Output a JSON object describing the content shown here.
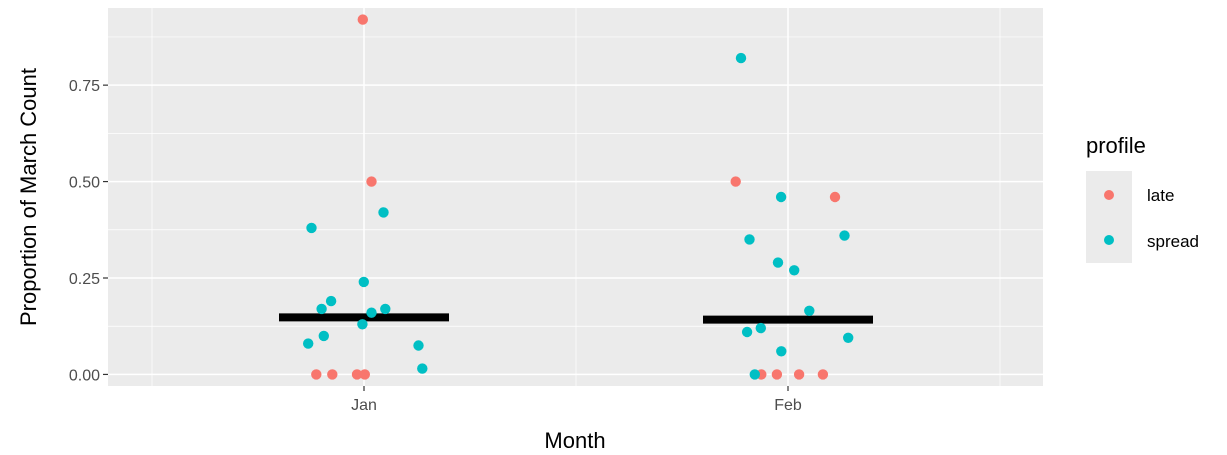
{
  "chart_data": {
    "type": "scatter",
    "xlabel": "Month",
    "ylabel": "Proportion of March Count",
    "categories": [
      "Jan",
      "Feb"
    ],
    "y_ticks": [
      "0.00",
      "0.25",
      "0.50",
      "0.75"
    ],
    "ylim": [
      -0.03,
      0.95
    ],
    "grid": true,
    "legend": {
      "title": "profile",
      "position": "right",
      "entries": [
        {
          "name": "late",
          "color": "#F8766D"
        },
        {
          "name": "spread",
          "color": "#00BFC4"
        }
      ]
    },
    "series": [
      {
        "name": "late",
        "color": "#F8766D",
        "points": [
          {
            "x": "Jan",
            "y": 0.92
          },
          {
            "x": "Jan",
            "y": 0.5
          },
          {
            "x": "Jan",
            "y": 0.0
          },
          {
            "x": "Jan",
            "y": 0.0
          },
          {
            "x": "Jan",
            "y": 0.0
          },
          {
            "x": "Jan",
            "y": 0.0
          },
          {
            "x": "Feb",
            "y": 0.5
          },
          {
            "x": "Feb",
            "y": 0.46
          },
          {
            "x": "Feb",
            "y": 0.0
          },
          {
            "x": "Feb",
            "y": 0.0
          },
          {
            "x": "Feb",
            "y": 0.0
          },
          {
            "x": "Feb",
            "y": 0.0
          }
        ]
      },
      {
        "name": "spread",
        "color": "#00BFC4",
        "points": [
          {
            "x": "Jan",
            "y": 0.42
          },
          {
            "x": "Jan",
            "y": 0.38
          },
          {
            "x": "Jan",
            "y": 0.24
          },
          {
            "x": "Jan",
            "y": 0.19
          },
          {
            "x": "Jan",
            "y": 0.17
          },
          {
            "x": "Jan",
            "y": 0.17
          },
          {
            "x": "Jan",
            "y": 0.16
          },
          {
            "x": "Jan",
            "y": 0.13
          },
          {
            "x": "Jan",
            "y": 0.1
          },
          {
            "x": "Jan",
            "y": 0.08
          },
          {
            "x": "Jan",
            "y": 0.075
          },
          {
            "x": "Jan",
            "y": 0.015
          },
          {
            "x": "Feb",
            "y": 0.82
          },
          {
            "x": "Feb",
            "y": 0.46
          },
          {
            "x": "Feb",
            "y": 0.36
          },
          {
            "x": "Feb",
            "y": 0.35
          },
          {
            "x": "Feb",
            "y": 0.29
          },
          {
            "x": "Feb",
            "y": 0.27
          },
          {
            "x": "Feb",
            "y": 0.165
          },
          {
            "x": "Feb",
            "y": 0.12
          },
          {
            "x": "Feb",
            "y": 0.11
          },
          {
            "x": "Feb",
            "y": 0.095
          },
          {
            "x": "Feb",
            "y": 0.06
          },
          {
            "x": "Feb",
            "y": 0.0
          }
        ]
      }
    ],
    "summary_lines": [
      {
        "x": "Jan",
        "y": 0.148,
        "color": "#000000"
      },
      {
        "x": "Feb",
        "y": 0.142,
        "color": "#000000"
      }
    ]
  }
}
